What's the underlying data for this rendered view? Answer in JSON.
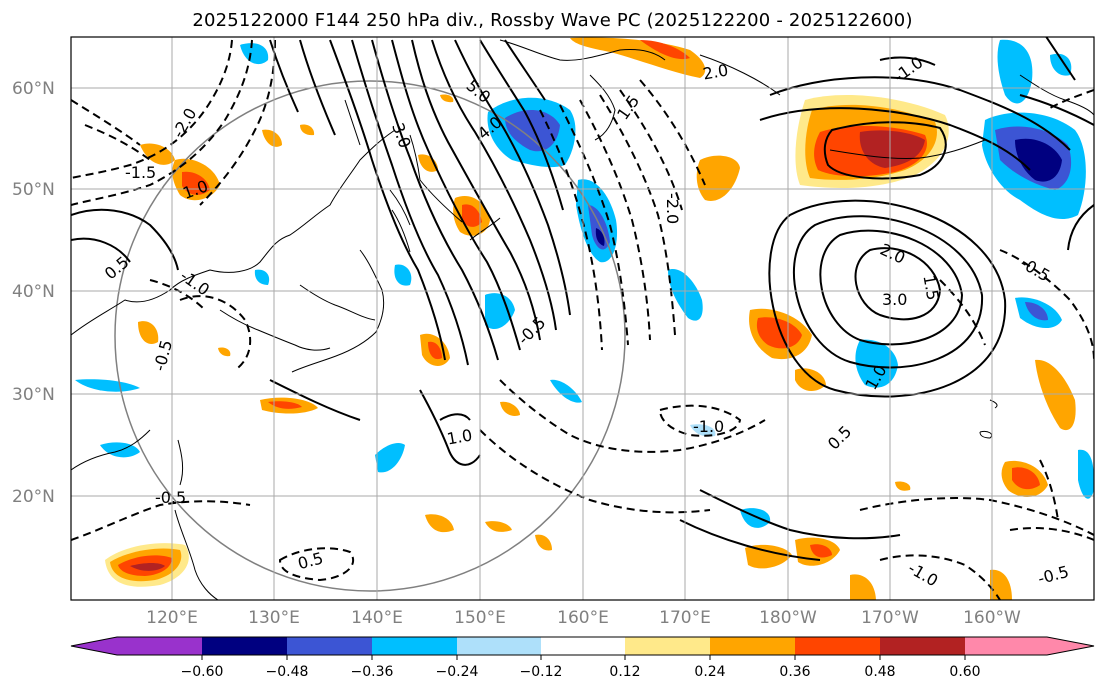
{
  "title": "2025122000 F144 250 hPa div., Rossby Wave PC (2025122200 - 2025122600)",
  "map": {
    "lat_labels": [
      "60°N",
      "50°N",
      "40°N",
      "30°N",
      "20°N"
    ],
    "lon_labels": [
      "120°E",
      "130°E",
      "140°E",
      "150°E",
      "160°E",
      "170°E",
      "180°W",
      "170°W",
      "160°W"
    ],
    "contour_labels": [
      "5.0",
      "4.0",
      "3.0",
      "2.0",
      "1.5",
      "1.0",
      "0.5",
      "-0.5",
      "-1.0",
      "-1.5",
      "-2.0",
      "1.0",
      "2.0",
      "3.0",
      "1.5",
      "0.5",
      "-0.5",
      "-1.0",
      "-2.0",
      "-0.5",
      "-1.0",
      "-0.5",
      "-1.0",
      "1.0",
      "0.5",
      "-0.5"
    ]
  },
  "colorbar": {
    "labels": [
      "−0.60",
      "−0.48",
      "−0.36",
      "−0.24",
      "−0.12",
      "0.12",
      "0.24",
      "0.36",
      "0.48",
      "0.60"
    ],
    "colors": [
      "#9932cc",
      "#000080",
      "#3c55d4",
      "#00bfff",
      "#aee0fa",
      "#ffffff",
      "#ffe98a",
      "#ffa500",
      "#ff4500",
      "#b22222",
      "#ff88aa"
    ]
  }
}
